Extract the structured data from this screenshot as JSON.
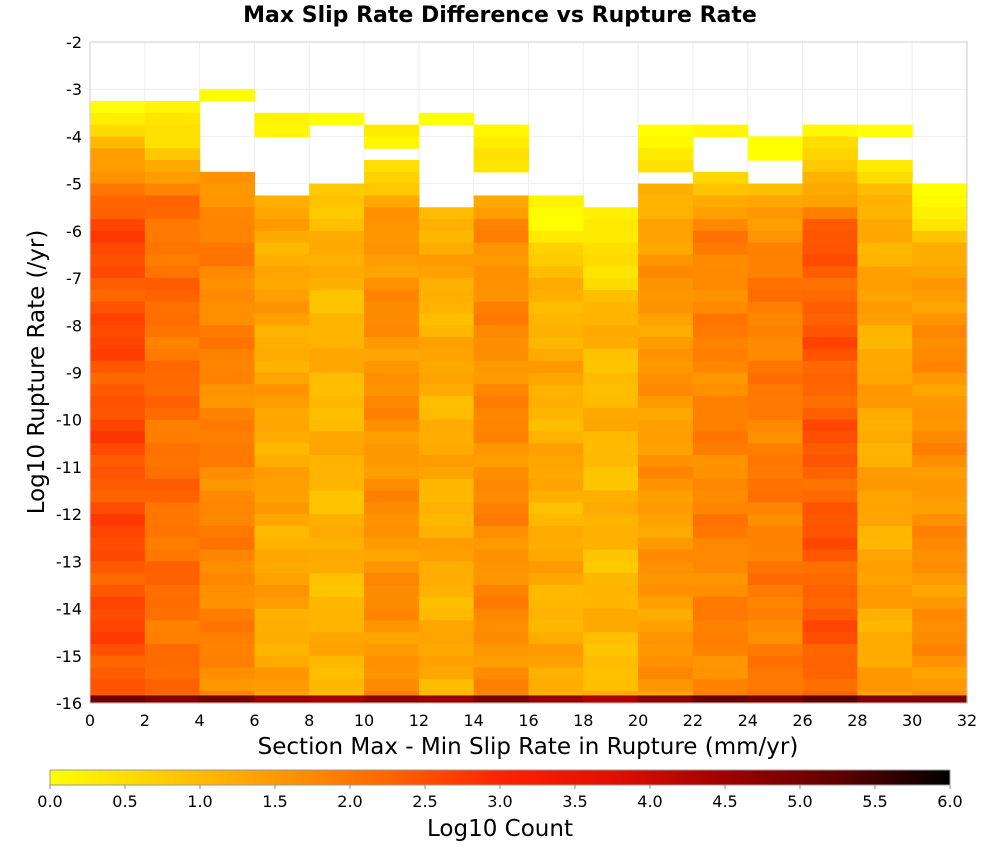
{
  "chart_data": {
    "type": "heatmap",
    "title": "Max Slip Rate Difference vs Rupture Rate",
    "xlabel": "Section Max - Min Slip Rate in Rupture (mm/yr)",
    "ylabel": "Log10 Rupture Rate (/yr)",
    "xlim": [
      0,
      32
    ],
    "ylim": [
      -16,
      -2
    ],
    "x_ticks": [
      "0",
      "2",
      "4",
      "6",
      "8",
      "10",
      "12",
      "14",
      "16",
      "18",
      "20",
      "22",
      "24",
      "26",
      "28",
      "30",
      "32"
    ],
    "y_ticks": [
      "-2",
      "-3",
      "-4",
      "-5",
      "-6",
      "-7",
      "-8",
      "-9",
      "-10",
      "-11",
      "-12",
      "-13",
      "-14",
      "-15",
      "-16"
    ],
    "x_bin_width": 2,
    "y_bin_width": 0.25,
    "colorbar": {
      "label": "Log10 Count",
      "range": [
        0,
        6
      ],
      "ticks": [
        "0.0",
        "0.5",
        "1.0",
        "1.5",
        "2.0",
        "2.5",
        "3.0",
        "3.5",
        "4.0",
        "4.5",
        "5.0",
        "5.5",
        "6.0"
      ],
      "stops": [
        "#ffff00",
        "#ffcc00",
        "#ff9900",
        "#ff6600",
        "#ff2200",
        "#e01000",
        "#a00000",
        "#600000",
        "#000000"
      ]
    },
    "grid": true,
    "columns": [
      {
        "x": 1,
        "top": -3.25,
        "base": 2.5
      },
      {
        "x": 3,
        "top": -3.25,
        "base": 2.1
      },
      {
        "x": 5,
        "top": -3.0,
        "base": 1.8
      },
      {
        "x": 7,
        "top": -3.5,
        "base": 1.3
      },
      {
        "x": 9,
        "top": -3.5,
        "base": 1.1
      },
      {
        "x": 11,
        "top": -3.75,
        "base": 1.6
      },
      {
        "x": 13,
        "top": -3.5,
        "base": 1.2
      },
      {
        "x": 15,
        "top": -3.75,
        "base": 1.7
      },
      {
        "x": 17,
        "top": -5.25,
        "base": 1.2
      },
      {
        "x": 19,
        "top": -5.5,
        "base": 1.05
      },
      {
        "x": 21,
        "top": -3.75,
        "base": 1.5
      },
      {
        "x": 23,
        "top": -3.75,
        "base": 1.8
      },
      {
        "x": 25,
        "top": -4.0,
        "base": 1.9
      },
      {
        "x": 27,
        "top": -3.75,
        "base": 2.35
      },
      {
        "x": 29,
        "top": -3.75,
        "base": 1.3
      },
      {
        "x": 31,
        "top": -5.0,
        "base": 1.6
      }
    ],
    "empty_bins": [
      {
        "x": 5,
        "y_from": -4.5,
        "y_to": -3.25
      },
      {
        "x": 7,
        "y_from": -5.0,
        "y_to": -4.0
      },
      {
        "x": 9,
        "y_from": -4.75,
        "y_to": -3.75
      },
      {
        "x": 11,
        "y_from": -4.25,
        "y_to": -4.25
      },
      {
        "x": 13,
        "y_from": -5.25,
        "y_to": -3.75
      },
      {
        "x": 15,
        "y_from": -5.0,
        "y_to": -4.75
      },
      {
        "x": 21,
        "y_from": -4.75,
        "y_to": -4.75
      },
      {
        "x": 23,
        "y_from": -4.5,
        "y_to": -4.0
      },
      {
        "x": 25,
        "y_from": -4.75,
        "y_to": -4.5
      },
      {
        "x": 29,
        "y_from": -4.25,
        "y_to": -4.0
      }
    ],
    "bottom_row": {
      "y": -16,
      "values": [
        5.1,
        4.9,
        5.0,
        4.6,
        4.5,
        4.8,
        4.6,
        5.0,
        4.7,
        4.4,
        4.8,
        5.2,
        5.0,
        5.3,
        4.9,
        4.9
      ]
    }
  }
}
